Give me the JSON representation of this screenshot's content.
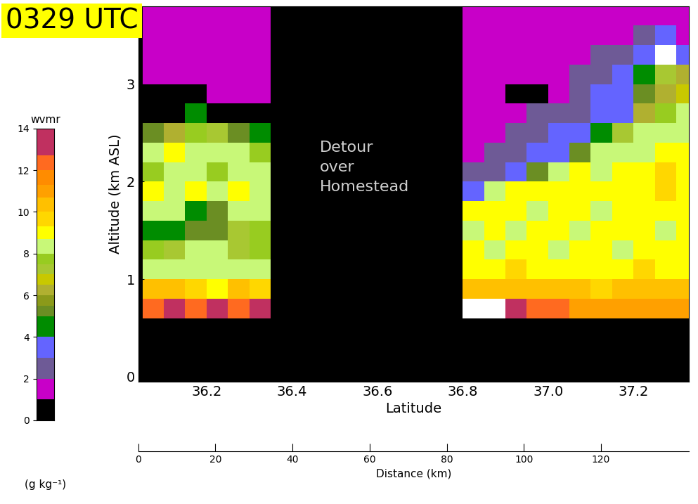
{
  "chart_data": {
    "type": "heatmap",
    "title": "0329 UTC",
    "x_label": "Latitude",
    "y_label": "Altitude (km ASL)",
    "xlim": [
      36.04,
      37.33
    ],
    "xticks": [
      36.2,
      36.4,
      36.6,
      36.8,
      37.0,
      37.2
    ],
    "ylim": [
      -0.05,
      3.8
    ],
    "yticks": [
      0,
      1,
      2,
      3
    ],
    "annotation": "Detour\nover\nHomestead",
    "x_edges": [
      36.05,
      36.1,
      36.15,
      36.2,
      36.25,
      36.3,
      36.35,
      36.4,
      36.45,
      36.5,
      36.55,
      36.6,
      36.65,
      36.7,
      36.75,
      36.8,
      36.85,
      36.9,
      36.95,
      37.0,
      37.05,
      37.1,
      37.15,
      37.2,
      37.25,
      37.3,
      37.35
    ],
    "y_edges": [
      0,
      0.6,
      0.8,
      1.0,
      1.2,
      1.4,
      1.6,
      1.8,
      2.0,
      2.2,
      2.4,
      2.6,
      2.8,
      3.0,
      3.2,
      3.4,
      3.6,
      3.8
    ],
    "cells": [
      [
        null,
        null,
        null,
        null,
        null,
        null,
        null,
        null,
        null,
        null,
        null,
        null,
        null,
        null,
        null,
        null,
        null,
        null,
        null,
        null,
        null,
        null,
        null,
        null,
        null,
        null
      ],
      [
        12,
        13,
        12,
        13,
        12,
        13,
        null,
        null,
        null,
        null,
        null,
        null,
        null,
        null,
        null,
        14,
        14,
        13,
        12,
        12,
        11,
        11,
        11,
        11,
        11,
        11
      ],
      [
        10,
        10,
        9.5,
        9,
        10,
        9.5,
        null,
        null,
        null,
        null,
        null,
        null,
        null,
        null,
        null,
        10,
        10.5,
        10,
        10,
        10,
        10,
        9.5,
        10,
        10,
        10,
        10
      ],
      [
        8,
        8.5,
        8,
        8.5,
        8,
        8,
        null,
        null,
        null,
        null,
        null,
        null,
        null,
        null,
        null,
        9,
        9,
        9.5,
        9,
        9,
        9,
        9,
        9,
        9.5,
        9,
        9
      ],
      [
        7.5,
        7,
        8,
        8.5,
        7,
        7.5,
        null,
        null,
        null,
        null,
        null,
        null,
        null,
        null,
        null,
        9,
        8.5,
        9,
        9,
        8.5,
        9,
        9,
        8.5,
        9,
        9,
        9
      ],
      [
        4,
        4.5,
        5,
        5,
        7,
        7.5,
        null,
        null,
        null,
        null,
        null,
        null,
        null,
        null,
        null,
        8.5,
        9,
        8.5,
        9,
        9,
        8.5,
        9,
        9,
        9,
        8.5,
        9
      ],
      [
        8,
        8,
        4.5,
        5,
        8,
        8.5,
        null,
        null,
        null,
        null,
        null,
        null,
        null,
        null,
        null,
        9,
        9,
        9,
        8.5,
        9,
        9,
        8.5,
        9,
        9,
        9,
        9
      ],
      [
        9,
        8.5,
        9,
        8.5,
        9,
        8.5,
        null,
        null,
        null,
        null,
        null,
        null,
        null,
        null,
        null,
        3.5,
        8,
        9,
        9,
        9,
        9,
        9,
        9,
        9,
        9.5,
        9
      ],
      [
        7.5,
        8,
        8,
        7.5,
        8.5,
        8,
        null,
        null,
        null,
        null,
        null,
        null,
        null,
        null,
        null,
        2,
        2.5,
        3.5,
        5,
        8.5,
        9,
        8.5,
        9,
        9,
        9.5,
        9
      ],
      [
        8.5,
        9,
        8,
        8.5,
        8,
        7.5,
        null,
        null,
        null,
        null,
        null,
        null,
        null,
        null,
        null,
        1.5,
        2,
        2.5,
        3,
        3.5,
        5,
        8,
        8.5,
        8.5,
        9,
        9
      ],
      [
        5,
        6,
        7.5,
        7,
        5,
        4,
        null,
        null,
        null,
        null,
        null,
        null,
        null,
        null,
        null,
        1.5,
        1.5,
        2,
        2.5,
        3,
        3,
        4,
        7,
        8,
        8.5,
        8.5
      ],
      [
        0.5,
        0.5,
        4,
        0.5,
        0.5,
        0.5,
        null,
        null,
        null,
        null,
        null,
        null,
        null,
        null,
        null,
        1.5,
        1.5,
        1.5,
        2,
        2.5,
        2.5,
        3,
        3.5,
        6,
        7.5,
        8
      ],
      [
        0.5,
        0.5,
        0.5,
        1.5,
        1.5,
        1.5,
        null,
        null,
        null,
        null,
        null,
        null,
        null,
        null,
        null,
        1.5,
        1.5,
        0.5,
        0.5,
        1.5,
        2.5,
        3,
        3,
        5,
        6,
        6.5
      ],
      [
        1.5,
        1.5,
        1.5,
        1.5,
        1.5,
        1.5,
        null,
        null,
        null,
        null,
        null,
        null,
        null,
        null,
        null,
        1.5,
        1.5,
        1.5,
        1.5,
        1.5,
        2.5,
        2.5,
        3,
        4,
        7,
        6
      ],
      [
        1.5,
        1.5,
        1.5,
        1.5,
        1.5,
        1.5,
        null,
        null,
        null,
        null,
        null,
        null,
        null,
        null,
        null,
        1.5,
        1.5,
        1.5,
        1.5,
        1.5,
        1.5,
        2,
        2.5,
        3,
        14,
        3
      ],
      [
        1.5,
        1.5,
        1.5,
        1.5,
        1.5,
        1.5,
        null,
        null,
        null,
        null,
        null,
        null,
        null,
        null,
        null,
        1.5,
        1.5,
        1.5,
        1.5,
        1.5,
        1.5,
        1.5,
        1.5,
        2.5,
        3,
        1.5
      ],
      [
        1.5,
        1.5,
        1.5,
        1.5,
        1.5,
        1.5,
        null,
        null,
        null,
        null,
        null,
        null,
        null,
        null,
        null,
        1.5,
        1.5,
        1.5,
        1.5,
        1.5,
        1.5,
        1.5,
        1.5,
        1.5,
        1.5,
        1.5
      ]
    ],
    "colorbar": {
      "title": "wvmr",
      "units": "(g kg⁻¹)",
      "levels": [
        0,
        1,
        2,
        3,
        4,
        5,
        5.5,
        6,
        6.5,
        7,
        7.5,
        8,
        8.7,
        9.3,
        10,
        10.7,
        11.3,
        12,
        12.7,
        14,
        15
      ],
      "colors": [
        "#000000",
        "#c800c8",
        "#6e5a96",
        "#6464ff",
        "#008c00",
        "#6b8e23",
        "#8b9a1a",
        "#b0b030",
        "#c8c800",
        "#a8c832",
        "#98cc20",
        "#c8f878",
        "#ffff00",
        "#ffd700",
        "#ffc000",
        "#ffa000",
        "#ff8c00",
        "#ff6a20",
        "#c03060",
        "#ffffff"
      ],
      "lim": [
        0,
        14
      ],
      "ticks": [
        0,
        2,
        4,
        6,
        8,
        10,
        12,
        14
      ]
    },
    "distance_axis": {
      "label": "Distance (km)",
      "xlim": [
        0,
        142.8
      ],
      "xticks": [
        0,
        20,
        40,
        60,
        80,
        100,
        120
      ]
    }
  }
}
